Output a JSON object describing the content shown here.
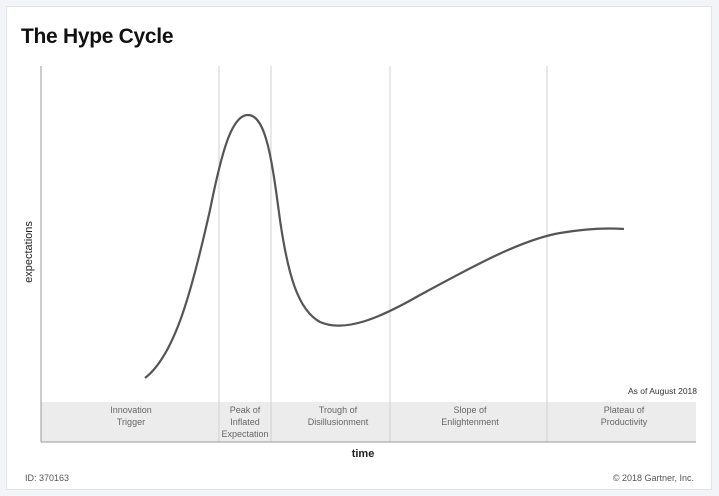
{
  "title": "The Hype Cycle",
  "ylabel": "expectations",
  "xlabel": "time",
  "as_of": "As of August 2018",
  "footer": {
    "id": "ID: 370163",
    "copyright": "© 2018 Gartner, Inc."
  },
  "phases": [
    {
      "line1": "Innovation",
      "line2": "Trigger",
      "line3": ""
    },
    {
      "line1": "Peak of",
      "line2": "Inflated",
      "line3": "Expectation"
    },
    {
      "line1": "Trough of",
      "line2": "Disillusionment",
      "line3": ""
    },
    {
      "line1": "Slope of",
      "line2": "Enlightenment",
      "line3": ""
    },
    {
      "line1": "Plateau of",
      "line2": "Productivity",
      "line3": ""
    }
  ],
  "colors": {
    "curve": "#555555",
    "band": "#ececec",
    "divider": "#cfcfcf",
    "axis": "#999999"
  }
}
